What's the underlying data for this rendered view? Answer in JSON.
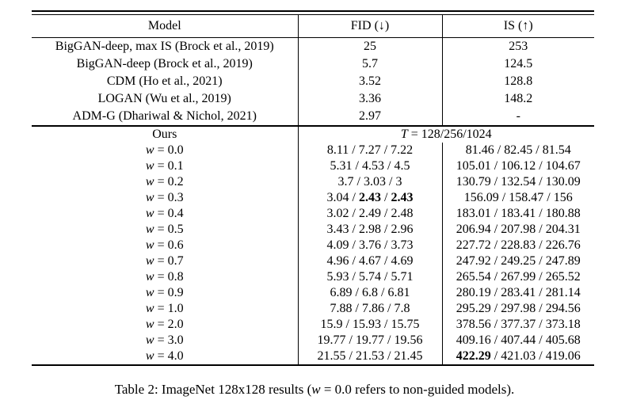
{
  "table": {
    "headers": {
      "model": "Model",
      "fid": "FID (↓)",
      "is": "IS (↑)"
    },
    "baseline_rows": [
      {
        "model": "BigGAN-deep, max IS (Brock et al., 2019)",
        "fid": "25",
        "is": "253"
      },
      {
        "model": "BigGAN-deep (Brock et al., 2019)",
        "fid": "5.7",
        "is": "124.5"
      },
      {
        "model": "CDM (Ho et al., 2021)",
        "fid": "3.52",
        "is": "128.8"
      },
      {
        "model": "LOGAN (Wu et al., 2019)",
        "fid": "3.36",
        "is": "148.2"
      },
      {
        "model": "ADM-G (Dhariwal & Nichol, 2021)",
        "fid": "2.97",
        "is": "-"
      }
    ],
    "ours_label": "Ours",
    "w_symbol": "w",
    "t_symbol": "T",
    "t_value": " = 128/256/1024",
    "ours_rows": [
      {
        "w": "0.0",
        "fid": [
          "8.11",
          "7.27",
          "7.22"
        ],
        "is": [
          "81.46",
          "82.45",
          "81.54"
        ]
      },
      {
        "w": "0.1",
        "fid": [
          "5.31",
          "4.53",
          "4.5"
        ],
        "is": [
          "105.01",
          "106.12",
          "104.67"
        ]
      },
      {
        "w": "0.2",
        "fid": [
          "3.7",
          "3.03",
          "3"
        ],
        "is": [
          "130.79",
          "132.54",
          "130.09"
        ]
      },
      {
        "w": "0.3",
        "fid": [
          "3.04",
          "2.43",
          "2.43"
        ],
        "fid_bold": [
          false,
          true,
          true
        ],
        "is": [
          "156.09",
          "158.47",
          "156"
        ]
      },
      {
        "w": "0.4",
        "fid": [
          "3.02",
          "2.49",
          "2.48"
        ],
        "is": [
          "183.01",
          "183.41",
          "180.88"
        ]
      },
      {
        "w": "0.5",
        "fid": [
          "3.43",
          "2.98",
          "2.96"
        ],
        "is": [
          "206.94",
          "207.98",
          "204.31"
        ]
      },
      {
        "w": "0.6",
        "fid": [
          "4.09",
          "3.76",
          "3.73"
        ],
        "is": [
          "227.72",
          "228.83",
          "226.76"
        ]
      },
      {
        "w": "0.7",
        "fid": [
          "4.96",
          "4.67",
          "4.69"
        ],
        "is": [
          "247.92",
          "249.25",
          "247.89"
        ]
      },
      {
        "w": "0.8",
        "fid": [
          "5.93",
          "5.74",
          "5.71"
        ],
        "is": [
          "265.54",
          "267.99",
          "265.52"
        ]
      },
      {
        "w": "0.9",
        "fid": [
          "6.89",
          "6.8",
          "6.81"
        ],
        "is": [
          "280.19",
          "283.41",
          "281.14"
        ]
      },
      {
        "w": "1.0",
        "fid": [
          "7.88",
          "7.86",
          "7.8"
        ],
        "is": [
          "295.29",
          "297.98",
          "294.56"
        ]
      },
      {
        "w": "2.0",
        "fid": [
          "15.9",
          "15.93",
          "15.75"
        ],
        "is": [
          "378.56",
          "377.37",
          "373.18"
        ]
      },
      {
        "w": "3.0",
        "fid": [
          "19.77",
          "19.77",
          "19.56"
        ],
        "is": [
          "409.16",
          "407.44",
          "405.68"
        ]
      },
      {
        "w": "4.0",
        "fid": [
          "21.55",
          "21.53",
          "21.45"
        ],
        "is": [
          "422.29",
          "421.03",
          "419.06"
        ],
        "is_bold": [
          true,
          false,
          false
        ]
      }
    ]
  },
  "caption": {
    "prefix": "Table 2: ImageNet 128x128 results (",
    "w_symbol": "w",
    "suffix": " = 0.0 refers to non-guided models)."
  }
}
